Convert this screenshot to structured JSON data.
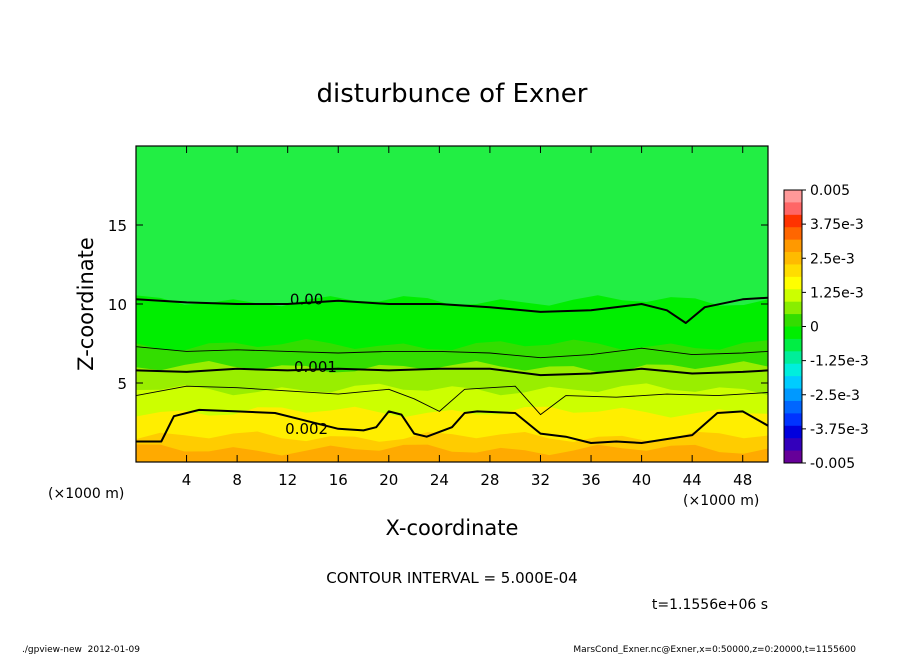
{
  "chart_data": {
    "type": "heatmap",
    "title": "disturbunce of Exner",
    "xlabel": "X-coordinate",
    "ylabel": "Z-coordinate",
    "x_unit_left": "(×1000 m)",
    "x_unit_right": "(×1000 m)",
    "xlim": [
      0,
      50
    ],
    "ylim": [
      0,
      20
    ],
    "x_ticks": [
      4,
      8,
      12,
      16,
      20,
      24,
      28,
      32,
      36,
      40,
      44,
      48
    ],
    "y_ticks": [
      5,
      10,
      15
    ],
    "contour_interval_text": "CONTOUR INTERVAL = 5.000E-04",
    "time_text": "t=1.1556e+06 s",
    "footer_left": "./gpview-new  2012-01-09",
    "footer_right": "MarsCond_Exner.nc@Exner,x=0:50000,z=0:20000,t=1155600",
    "colorbar": {
      "labels": [
        "0.005",
        "3.75e-3",
        "2.5e-3",
        "1.25e-3",
        "0",
        "-1.25e-3",
        "-2.5e-3",
        "-3.75e-3",
        "-0.005"
      ],
      "colors_top_to_bottom": [
        "#ff9999",
        "#ff6666",
        "#ff3300",
        "#ff6600",
        "#ff9900",
        "#ffbb00",
        "#ffdd00",
        "#ffff00",
        "#ccff00",
        "#88ee00",
        "#33dd00",
        "#00ee00",
        "#00ee44",
        "#00ee99",
        "#00eedd",
        "#00ccff",
        "#0099ff",
        "#0066ff",
        "#0033ff",
        "#0000dd",
        "#3300bb",
        "#660099"
      ]
    },
    "fill_bands": [
      {
        "z_top": 20,
        "color": "#22ee44"
      },
      {
        "z_top": 10.2,
        "color": "#00ee00"
      },
      {
        "z_top": 7.4,
        "color": "#33dd00"
      },
      {
        "z_top": 6.0,
        "color": "#99ee00"
      },
      {
        "z_top": 4.6,
        "color": "#ccff00"
      },
      {
        "z_top": 3.2,
        "color": "#ffee00"
      },
      {
        "z_top": 1.6,
        "color": "#ffcc00"
      },
      {
        "z_top": 0.8,
        "color": "#ffaa00"
      }
    ],
    "contours": [
      {
        "label": "0.00",
        "weight": "bold",
        "label_x": 13.5,
        "label_z": 10.3,
        "x": [
          0,
          4,
          8,
          12,
          16,
          20,
          24,
          28,
          32,
          36,
          40,
          42,
          43.5,
          45,
          48,
          50
        ],
        "z": [
          10.3,
          10.1,
          10.0,
          10.0,
          10.2,
          10.0,
          10.0,
          9.8,
          9.5,
          9.6,
          10.0,
          9.6,
          8.8,
          9.8,
          10.3,
          10.4
        ]
      },
      {
        "label": "",
        "weight": "thin",
        "x": [
          0,
          4,
          8,
          12,
          16,
          20,
          24,
          28,
          32,
          36,
          40,
          44,
          48,
          50
        ],
        "z": [
          7.3,
          7.0,
          7.1,
          7.0,
          6.9,
          7.0,
          7.0,
          6.9,
          6.6,
          6.8,
          7.2,
          6.8,
          6.9,
          7.0
        ]
      },
      {
        "label": "0.001",
        "weight": "bold",
        "label_x": 14.2,
        "label_z": 6.0,
        "x": [
          0,
          4,
          8,
          12,
          16,
          20,
          24,
          28,
          32,
          36,
          40,
          44,
          48,
          50
        ],
        "z": [
          5.8,
          5.7,
          5.9,
          5.8,
          5.9,
          5.8,
          5.9,
          5.9,
          5.5,
          5.6,
          5.9,
          5.6,
          5.7,
          5.8
        ]
      },
      {
        "label": "",
        "weight": "thin",
        "x": [
          0,
          4,
          8,
          12,
          16,
          20,
          22,
          24,
          26,
          30,
          32,
          34,
          38,
          42,
          46,
          50
        ],
        "z": [
          4.2,
          4.8,
          4.7,
          4.5,
          4.3,
          4.6,
          4.0,
          3.2,
          4.6,
          4.8,
          3.0,
          4.2,
          4.1,
          4.3,
          4.2,
          4.4
        ]
      },
      {
        "label": "0.002",
        "weight": "bold",
        "label_x": 13.5,
        "label_z": 2.1,
        "x": [
          0,
          2,
          3,
          5,
          8,
          11,
          13,
          16,
          18,
          19,
          20,
          21,
          22,
          23,
          25,
          26,
          27,
          30,
          32,
          34,
          36,
          38,
          40,
          44,
          46,
          48,
          50
        ],
        "z": [
          1.3,
          1.3,
          2.9,
          3.3,
          3.2,
          3.1,
          2.7,
          2.1,
          2.0,
          2.2,
          3.2,
          3.0,
          1.8,
          1.6,
          2.2,
          3.1,
          3.2,
          3.1,
          1.8,
          1.6,
          1.2,
          1.3,
          1.2,
          1.7,
          3.1,
          3.2,
          2.3
        ]
      }
    ]
  }
}
